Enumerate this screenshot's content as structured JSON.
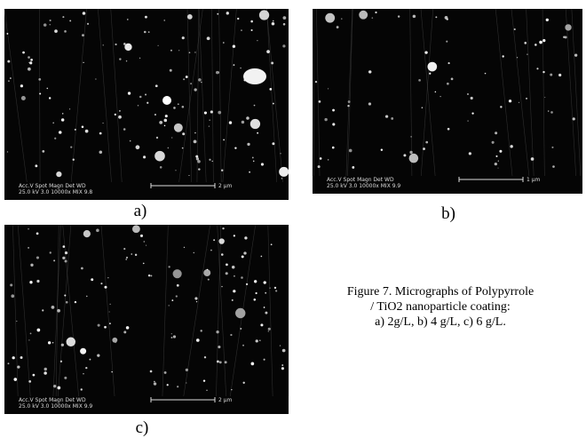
{
  "panels": [
    {
      "label": "a)",
      "info_header": "Acc.V  Spot Magn   Det  WD",
      "info_values": "25.0 kV 3.0  10000x  MIX  9.8",
      "scale": "2 µm"
    },
    {
      "label": "b)",
      "info_header": "Acc.V  Spot Magn   Det  WD",
      "info_values": "25.0 kV 3.0  10000x  MIX  9.9",
      "scale": "1 µm"
    },
    {
      "label": "c)",
      "info_header": "Acc.V  Spot Magn   Det  WD",
      "info_values": "25.0 kV 3.0  10000x  MIX  9.9",
      "scale": "2 µm"
    }
  ],
  "caption": [
    "Figure 7. Micrographs of Polypyrrole",
    "/ TiO2 nanoparticle coating:",
    "a) 2g/L, b) 4 g/L, c) 6 g/L."
  ]
}
